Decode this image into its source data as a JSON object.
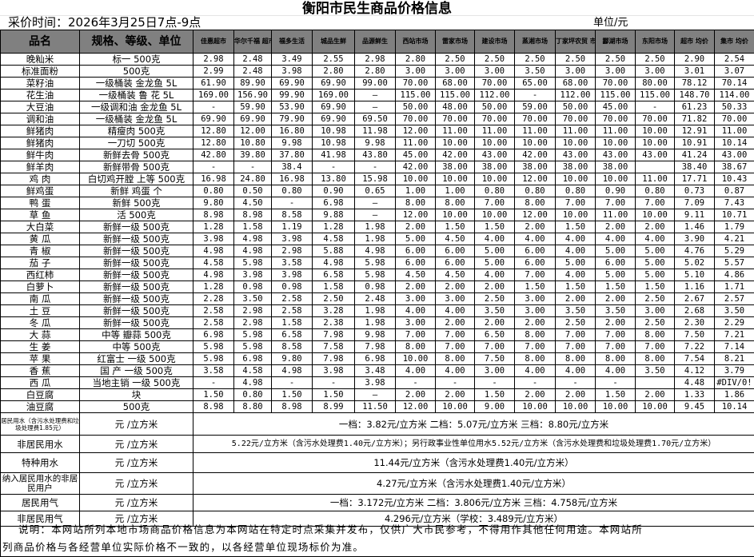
{
  "title": "衡阳市民生商品价格信息",
  "collect_time": "采价时间：2026年3月25日7点-9点",
  "unit": "单位/元",
  "headers": [
    "品名",
    "规格、等级、单位",
    "佳惠超市",
    "华尔千福 超市",
    "福多生活",
    "城品生鲜",
    "品源鲜生",
    "西站市场",
    "雷家市场",
    "建设市场",
    "蒸湘市场",
    "丁家坪农贸 市场",
    "酃湖市场",
    "东阳市场",
    "超市 均价",
    "集市 均价"
  ],
  "rows": [
    [
      "晚籼米",
      "标一 500克",
      "2.98",
      "2.48",
      "3.49",
      "2.55",
      "2.98",
      "2.80",
      "2.50",
      "2.50",
      "2.50",
      "2.50",
      "2.50",
      "2.50",
      "2.90",
      "2.54"
    ],
    [
      "标准面粉",
      "500克",
      "2.99",
      "2.48",
      "3.98",
      "2.80",
      "2.80",
      "3.00",
      "3.00",
      "3.00",
      "3.50",
      "3.00",
      "3.00",
      "3.00",
      "3.01",
      "3.07"
    ],
    [
      "菜籽油",
      "一级桶装  金龙鱼  5L",
      "61.90",
      "89.90",
      "69.90",
      "69.90",
      "99.00",
      "70.00",
      "68.00",
      "70.00",
      "65.00",
      "68.00",
      "70.00",
      "80.00",
      "78.12",
      "70.14"
    ],
    [
      "花生油",
      "一级桶装  鲁  花  5L",
      "169.00",
      "156.90",
      "99.90",
      "169.00",
      "—",
      "115.00",
      "115.00",
      "112.00",
      "-",
      "112.00",
      "115.00",
      "115.00",
      "148.70",
      "114.00"
    ],
    [
      "大豆油",
      "一级调和油 金龙鱼 5L",
      "-",
      "59.90",
      "53.90",
      "69.90",
      "—",
      "50.00",
      "48.00",
      "50.00",
      "59.00",
      "50.00",
      "45.00",
      "-",
      "61.23",
      "50.33"
    ],
    [
      "调和油",
      "一级桶装  金龙鱼  5L",
      "69.90",
      "69.90",
      "79.90",
      "69.90",
      "69.50",
      "70.00",
      "70.00",
      "70.00",
      "70.00",
      "70.00",
      "70.00",
      "70.00",
      "71.82",
      "70.00"
    ],
    [
      "鲜猪肉",
      "精瘦肉  500克",
      "12.80",
      "12.00",
      "16.80",
      "10.98",
      "11.98",
      "12.00",
      "11.00",
      "11.00",
      "11.00",
      "11.00",
      "11.00",
      "10.00",
      "12.91",
      "11.00"
    ],
    [
      "鲜猪肉",
      "一刀切  500克",
      "12.80",
      "10.80",
      "9.98",
      "10.98",
      "9.98",
      "11.00",
      "10.00",
      "10.00",
      "10.00",
      "10.00",
      "10.00",
      "10.00",
      "10.91",
      "10.14"
    ],
    [
      "鲜牛肉",
      "新鲜去骨 500克",
      "42.80",
      "39.80",
      "37.80",
      "41.98",
      "43.80",
      "45.00",
      "42.00",
      "43.00",
      "42.00",
      "43.00",
      "43.00",
      "43.00",
      "41.24",
      "43.00"
    ],
    [
      "鲜羊肉",
      "新鲜带骨 500克",
      "-",
      "-",
      "38.4",
      "-",
      "-",
      "42.00",
      "38.00",
      "38.00",
      "38.00",
      "38.00",
      "38.00",
      "",
      "38.40",
      "38.67"
    ],
    [
      "鸡  肉",
      "白切鸡开膛 上等 500克",
      "16.98",
      "24.80",
      "16.98",
      "13.80",
      "15.98",
      "10.00",
      "10.00",
      "10.00",
      "12.00",
      "10.00",
      "10.00",
      "11.00",
      "17.71",
      "10.43"
    ],
    [
      "鲜鸡蛋",
      "新鲜 鸡蛋  个",
      "0.80",
      "0.50",
      "0.80",
      "0.90",
      "0.65",
      "1.00",
      "1.00",
      "0.80",
      "0.80",
      "0.80",
      "0.90",
      "0.80",
      "0.73",
      "0.87"
    ],
    [
      "鸭  蛋",
      "新鲜  500克",
      "9.80",
      "4.50",
      "-",
      "6.98",
      "—",
      "8.00",
      "8.00",
      "7.00",
      "8.00",
      "7.00",
      "7.00",
      "7.00",
      "7.09",
      "7.43"
    ],
    [
      "草  鱼",
      "活  500克",
      "8.98",
      "8.98",
      "8.58",
      "9.88",
      "—",
      "12.00",
      "10.00",
      "10.00",
      "12.00",
      "10.00",
      "11.00",
      "10.00",
      "9.11",
      "10.71"
    ],
    [
      "大白菜",
      "新鲜一级 500克",
      "1.28",
      "1.58",
      "1.19",
      "1.28",
      "1.98",
      "2.00",
      "1.50",
      "1.50",
      "2.00",
      "1.50",
      "2.00",
      "2.00",
      "1.46",
      "1.79"
    ],
    [
      "黄  瓜",
      "新鲜一级 500克",
      "3.98",
      "4.98",
      "3.98",
      "4.58",
      "1.98",
      "5.00",
      "4.50",
      "4.00",
      "4.00",
      "4.00",
      "4.00",
      "4.00",
      "3.90",
      "4.21"
    ],
    [
      "青  椒",
      "新鲜一级 500克",
      "4.98",
      "4.98",
      "2.98",
      "5.88",
      "4.98",
      "6.00",
      "6.00",
      "5.00",
      "6.00",
      "4.00",
      "5.00",
      "5.00",
      "4.76",
      "5.29"
    ],
    [
      "茄  子",
      "新鲜一级 500克",
      "4.58",
      "5.98",
      "3.58",
      "4.98",
      "5.98",
      "6.00",
      "6.00",
      "5.00",
      "6.00",
      "5.00",
      "6.00",
      "5.00",
      "5.02",
      "5.57"
    ],
    [
      "西红柿",
      "新鲜一级 500克",
      "4.98",
      "3.98",
      "3.98",
      "6.58",
      "5.98",
      "4.50",
      "4.50",
      "4.00",
      "7.00",
      "4.00",
      "5.00",
      "5.00",
      "5.10",
      "4.86"
    ],
    [
      "白萝卜",
      "新鲜一级 500克",
      "1.28",
      "0.98",
      "0.98",
      "1.58",
      "0.98",
      "2.00",
      "2.00",
      "2.00",
      "1.50",
      "1.50",
      "1.50",
      "1.50",
      "1.16",
      "1.71"
    ],
    [
      "南  瓜",
      "新鲜一级 500克",
      "2.28",
      "3.50",
      "2.58",
      "2.50",
      "2.48",
      "3.00",
      "3.00",
      "2.50",
      "3.00",
      "2.00",
      "2.00",
      "2.50",
      "2.67",
      "2.57"
    ],
    [
      "土  豆",
      "新鲜一级 500克",
      "2.58",
      "2.98",
      "2.58",
      "3.28",
      "1.98",
      "4.00",
      "4.00",
      "3.50",
      "3.00",
      "3.50",
      "3.50",
      "3.00",
      "2.68",
      "3.50"
    ],
    [
      "冬  瓜",
      "新鲜一级 500克",
      "2.58",
      "2.98",
      "1.58",
      "2.38",
      "1.98",
      "3.00",
      "2.00",
      "2.00",
      "2.00",
      "2.50",
      "2.00",
      "2.50",
      "2.30",
      "2.29"
    ],
    [
      "大  蒜",
      "中等 瓣蒜  500克",
      "6.98",
      "5.98",
      "6.58",
      "7.98",
      "9.98",
      "7.00",
      "7.00",
      "6.50",
      "8.00",
      "7.00",
      "7.00",
      "8.00",
      "7.50",
      "7.21"
    ],
    [
      "生  姜",
      "中等 500克",
      "5.98",
      "5.98",
      "8.58",
      "7.58",
      "7.98",
      "8.00",
      "7.00",
      "7.00",
      "7.00",
      "7.00",
      "7.00",
      "7.00",
      "7.22",
      "7.14"
    ],
    [
      "苹  果",
      "红富士  一级  500克",
      "5.98",
      "6.98",
      "9.80",
      "7.98",
      "6.98",
      "10.00",
      "8.00",
      "7.50",
      "8.00",
      "8.00",
      "8.00",
      "8.00",
      "7.54",
      "8.21"
    ],
    [
      "香  蕉",
      "国  产  一级  500克",
      "3.58",
      "4.58",
      "4.98",
      "3.98",
      "3.48",
      "4.00",
      "4.00",
      "3.00",
      "4.00",
      "4.00",
      "4.00",
      "3.50",
      "4.12",
      "3.79"
    ],
    [
      "西  瓜",
      "当地主销 一级  500克",
      "-",
      "4.98",
      "-",
      "-",
      "3.98",
      "-",
      "-",
      "-",
      "-",
      "-",
      "-",
      "",
      "4.48",
      "#DIV/0!"
    ],
    [
      "白豆腐",
      "块",
      "1.50",
      "0.80",
      "1.50",
      "1.50",
      "—",
      "2.00",
      "2.00",
      "1.50",
      "2.00",
      "2.00",
      "1.50",
      "2.00",
      "1.33",
      "1.86"
    ],
    [
      "油豆腐",
      "500克",
      "8.98",
      "8.80",
      "8.98",
      "8.99",
      "11.50",
      "12.00",
      "10.00",
      "9.00",
      "10.00",
      "10.00",
      "10.00",
      "10.00",
      "9.45",
      "10.14"
    ]
  ],
  "utilities": [
    {
      "name": "居民用水（含污水处理费和垃圾处理费1.85元）",
      "unit": "元 /立方米",
      "desc": "一档：3.82元/立方米      二档：5.07元/立方米      三档：8.80元/立方米"
    },
    {
      "name": "非居民用水",
      "unit": "元 /立方米",
      "desc": "5.22元/立方米（含污水处理费1.40元/立方米）；另行政事业性单位用水5.52元/立方米（含污水处理费和垃圾处理费1.70元/立方米）"
    },
    {
      "name": "特种用水",
      "unit": "元 /立方米",
      "desc": "11.44元/立方米（含污水处理费1.40元/立方米）"
    },
    {
      "name": "纳入居民用水的非居民用户",
      "unit": "元 /立方米",
      "desc": "4.27元/立方米（含污水处理费1.40元/立方米）"
    },
    {
      "name": "居民用气",
      "unit": "元 /立方米",
      "desc": "一档：3.172元/立方米        二档：3.806元/立方米       三档：4.758元/立方米"
    },
    {
      "name": "非居民用气",
      "unit": "元 /立方米",
      "desc": "4.296元/立方米（学校：3.489元/立方米）"
    }
  ],
  "footer": {
    "line1": "说明：本网站所列本地市场商品价格信息为本网站在特定时点采集并发布，仅供广大市民参考，不得用作其他任何用途。本网站所",
    "line2": "列商品价格与各经营单位实际价格不一致的，以各经营单位现场标价为准。"
  }
}
